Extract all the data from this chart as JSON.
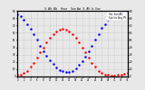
{
  "title": "S. Alt. Alt    Hour    Sun Azi  S. Alt  b, l/az",
  "legend_labels": [
    "Hot. Sun Alt",
    "Sun Inc Ang PV"
  ],
  "legend_colors": [
    "blue",
    "red"
  ],
  "xlim": [
    0,
    34
  ],
  "ylim": [
    0,
    90
  ],
  "grid_color": "#aaaaaa",
  "background_color": "#e8e8e8",
  "blue_x": [
    0,
    1,
    2,
    3,
    4,
    5,
    6,
    7,
    8,
    9,
    10,
    11,
    12,
    13,
    14,
    15,
    16,
    17,
    18,
    19,
    20,
    21,
    22,
    23,
    24,
    25,
    26,
    27,
    28,
    29,
    30,
    31,
    32,
    33,
    34
  ],
  "blue_y": [
    85,
    82,
    78,
    72,
    65,
    58,
    50,
    42,
    35,
    28,
    22,
    17,
    12,
    9,
    7,
    6,
    6,
    8,
    11,
    16,
    21,
    27,
    34,
    42,
    50,
    58,
    66,
    72,
    78,
    82,
    85,
    87,
    88,
    89,
    90
  ],
  "red_x": [
    0,
    1,
    2,
    3,
    4,
    5,
    6,
    7,
    8,
    9,
    10,
    11,
    12,
    13,
    14,
    15,
    16,
    17,
    18,
    19,
    20,
    21,
    22,
    23,
    24,
    25,
    26,
    27,
    28,
    29,
    30,
    31,
    32,
    33,
    34
  ],
  "red_y": [
    2,
    3,
    5,
    8,
    13,
    19,
    26,
    33,
    40,
    47,
    53,
    58,
    62,
    64,
    65,
    64,
    62,
    58,
    53,
    47,
    40,
    33,
    26,
    19,
    13,
    8,
    5,
    3,
    2,
    1,
    1,
    2,
    3,
    4,
    5
  ],
  "xtick_step": 2,
  "ytick_step": 10
}
